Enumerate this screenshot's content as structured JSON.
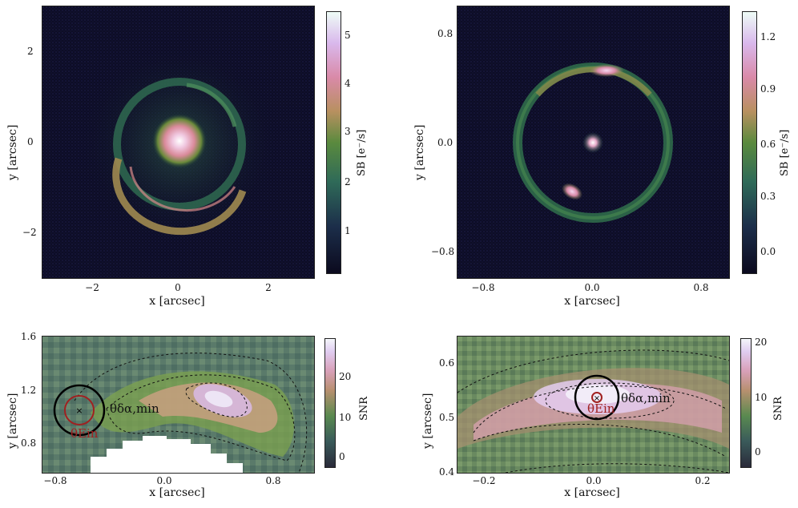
{
  "panels": {
    "top_left": {
      "xlabel": "x [arcsec]",
      "ylabel": "y [arcsec]",
      "xticks": [
        "−2",
        "0",
        "2"
      ],
      "yticks": [
        "2",
        "0",
        "−2"
      ],
      "cbar_label": "SB [e⁻/s]",
      "cbar_ticks": [
        "5",
        "4",
        "3",
        "2",
        "1"
      ]
    },
    "top_right": {
      "xlabel": "x [arcsec]",
      "ylabel": "y [arcsec]",
      "xticks": [
        "−0.8",
        "0.0",
        "0.8"
      ],
      "yticks": [
        "0.8",
        "0.0",
        "−0.8"
      ],
      "cbar_label": "SB [e⁻/s]",
      "cbar_ticks": [
        "1.2",
        "0.9",
        "0.6",
        "0.3",
        "0.0"
      ]
    },
    "bottom_left": {
      "xlabel": "x [arcsec]",
      "ylabel": "y [arcsec]",
      "xticks": [
        "−0.8",
        "0.0",
        "0.8"
      ],
      "yticks": [
        "1.6",
        "1.2",
        "0.8"
      ],
      "cbar_label": "SNR",
      "cbar_ticks": [
        "20",
        "10",
        "0"
      ],
      "ann_theta_da": "θδα,min",
      "ann_theta_ein": "θEin"
    },
    "bottom_right": {
      "xlabel": "x [arcsec]",
      "ylabel": "y [arcsec]",
      "xticks": [
        "−0.2",
        "0.0",
        "0.2"
      ],
      "yticks": [
        "0.6",
        "0.5",
        "0.4"
      ],
      "cbar_label": "SNR",
      "cbar_ticks": [
        "20",
        "10",
        "0"
      ],
      "ann_theta_da": "θδα,min",
      "ann_theta_ein": "θEin"
    }
  },
  "colors": {
    "background": "#0a0a22",
    "ring": "#3e7a4a",
    "arc_peak": "#d98aa0",
    "core": "#ffffff"
  }
}
